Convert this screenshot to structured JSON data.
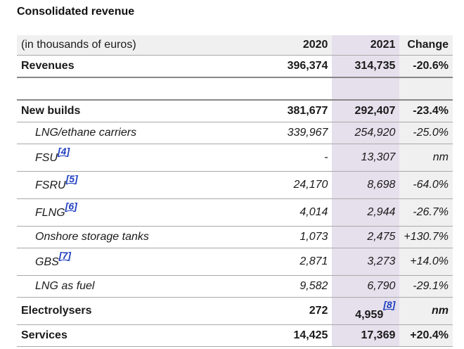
{
  "title": "Consolidated revenue",
  "table": {
    "header": {
      "label": "(in thousands of euros)",
      "y2020": "2020",
      "y2021": "2021",
      "change": "Change"
    },
    "rows": [
      {
        "label": "Revenues",
        "y2020": "396,374",
        "y2021": "314,735",
        "change": "-20.6%"
      },
      {
        "label": "",
        "y2020": "",
        "y2021": "",
        "change": ""
      },
      {
        "label": "New builds",
        "y2020": "381,677",
        "y2021": "292,407",
        "change": "-23.4%"
      },
      {
        "label": "LNG/ethane carriers",
        "y2020": "339,967",
        "y2021": "254,920",
        "change": "-25.0%"
      },
      {
        "label": "FSU",
        "footnote": "[4]",
        "y2020": "-",
        "y2021": "13,307",
        "change": "nm"
      },
      {
        "label": "FSRU",
        "footnote": "[5]",
        "y2020": "24,170",
        "y2021": "8,698",
        "change": "-64.0%"
      },
      {
        "label": "FLNG",
        "footnote": "[6]",
        "y2020": "4,014",
        "y2021": "2,944",
        "change": "-26.7%"
      },
      {
        "label": "Onshore storage tanks",
        "y2020": "1,073",
        "y2021": "2,475",
        "change": "+130.7%"
      },
      {
        "label": "GBS",
        "footnote": "[7]",
        "y2020": "2,871",
        "y2021": "3,273",
        "change": "+14.0%"
      },
      {
        "label": "LNG as fuel",
        "y2020": "9,582",
        "y2021": "6,790",
        "change": "-29.1%"
      },
      {
        "label": "Electrolysers",
        "y2020": "272",
        "y2021": "4,959",
        "footnote": "[8]",
        "change": "nm"
      },
      {
        "label": "Services",
        "y2020": "14,425",
        "y2021": "17,369",
        "change": "+20.4%"
      }
    ]
  },
  "colors": {
    "col2021_bg": "#e6e0ed",
    "change_bg": "#f0f0f0",
    "footnote_link": "#1f3fbf"
  }
}
